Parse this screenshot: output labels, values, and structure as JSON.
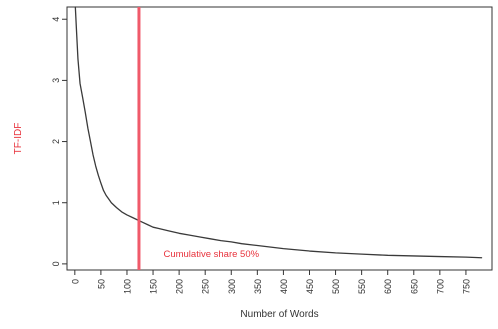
{
  "chart_data": {
    "type": "line",
    "title": "",
    "xlabel": "Number of Words",
    "ylabel": "TF-IDF",
    "xlim": [
      -15,
      800
    ],
    "ylim": [
      -0.1,
      4.2
    ],
    "x_ticks": [
      0,
      50,
      100,
      150,
      200,
      250,
      300,
      350,
      400,
      450,
      500,
      550,
      600,
      650,
      700,
      750
    ],
    "y_ticks": [
      0,
      1,
      2,
      3,
      4
    ],
    "x_tick_orientation": "vertical",
    "grid": false,
    "legend": "none",
    "series": [
      {
        "color": "#3a3a3a",
        "x": [
          1,
          3,
          6,
          10,
          15,
          20,
          25,
          30,
          35,
          40,
          45,
          50,
          55,
          60,
          65,
          70,
          80,
          90,
          100,
          110,
          120,
          130,
          140,
          150,
          160,
          180,
          200,
          220,
          240,
          260,
          280,
          300,
          320,
          350,
          380,
          400,
          450,
          500,
          550,
          600,
          650,
          700,
          750,
          780
        ],
        "y": [
          4.2,
          3.85,
          3.35,
          2.95,
          2.72,
          2.48,
          2.22,
          2.0,
          1.78,
          1.6,
          1.45,
          1.32,
          1.2,
          1.12,
          1.06,
          1.0,
          0.92,
          0.85,
          0.8,
          0.76,
          0.72,
          0.68,
          0.64,
          0.6,
          0.58,
          0.54,
          0.5,
          0.47,
          0.44,
          0.41,
          0.38,
          0.36,
          0.33,
          0.3,
          0.27,
          0.25,
          0.21,
          0.18,
          0.16,
          0.14,
          0.13,
          0.12,
          0.11,
          0.1
        ]
      }
    ],
    "vline": {
      "x": 123,
      "color": "#f05a6a"
    },
    "annotations": [
      {
        "text": "Cumulative share 50%",
        "x": 170,
        "y": 0.18,
        "color": "#e8323c"
      }
    ],
    "colors": {
      "axis": "#333333",
      "text": "#333333",
      "ylabel_text": "#e8323c"
    }
  }
}
